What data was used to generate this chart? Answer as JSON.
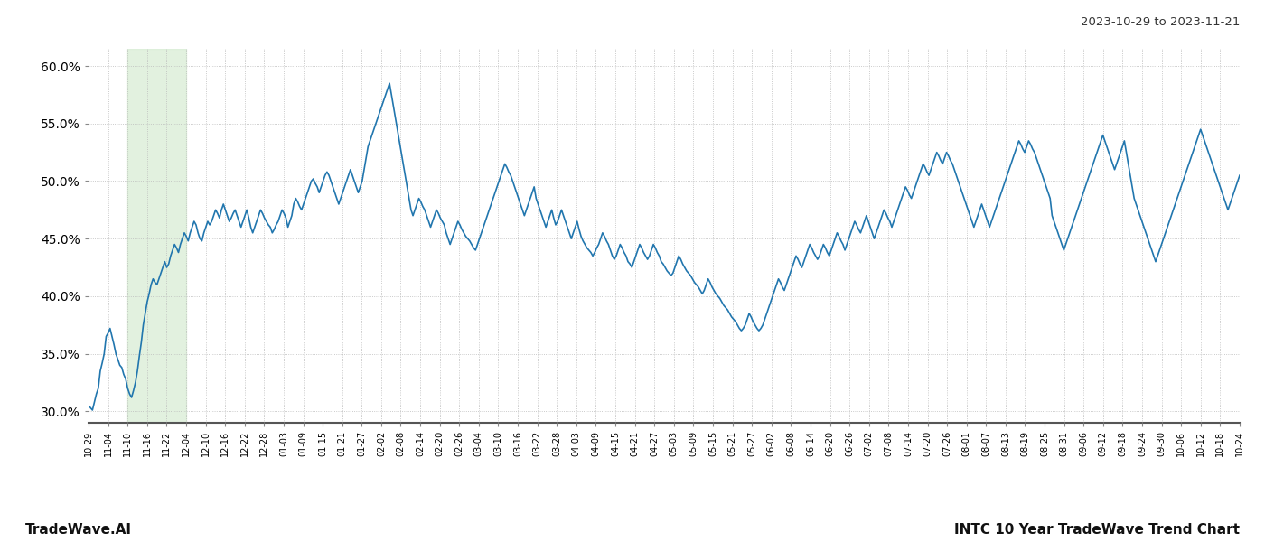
{
  "title_top_right": "2023-10-29 to 2023-11-21",
  "title_bottom_left": "TradeWave.AI",
  "title_bottom_right": "INTC 10 Year TradeWave Trend Chart",
  "line_color": "#2176ae",
  "line_width": 1.2,
  "shaded_region_color": "#d6ecd2",
  "shaded_region_alpha": 0.7,
  "ylim_low": 29.0,
  "ylim_high": 61.5,
  "yticks": [
    30.0,
    35.0,
    40.0,
    45.0,
    50.0,
    55.0,
    60.0
  ],
  "background_color": "#ffffff",
  "grid_color": "#bbbbbb",
  "grid_linestyle": ":",
  "x_labels": [
    "10-29",
    "11-04",
    "11-10",
    "11-16",
    "11-22",
    "12-04",
    "12-10",
    "12-16",
    "12-22",
    "12-28",
    "01-03",
    "01-09",
    "01-15",
    "01-21",
    "01-27",
    "02-02",
    "02-08",
    "02-14",
    "02-20",
    "02-26",
    "03-04",
    "03-10",
    "03-16",
    "03-22",
    "03-28",
    "04-03",
    "04-09",
    "04-15",
    "04-21",
    "04-27",
    "05-03",
    "05-09",
    "05-15",
    "05-21",
    "05-27",
    "06-02",
    "06-08",
    "06-14",
    "06-20",
    "06-26",
    "07-02",
    "07-08",
    "07-14",
    "07-20",
    "07-26",
    "08-01",
    "08-07",
    "08-13",
    "08-19",
    "08-25",
    "08-31",
    "09-06",
    "09-12",
    "09-18",
    "09-24",
    "09-30",
    "10-06",
    "10-12",
    "10-18",
    "10-24"
  ],
  "shaded_x_label_start": "11-10",
  "shaded_x_label_end": "11-28",
  "values": [
    30.5,
    30.3,
    30.1,
    30.8,
    31.5,
    32.0,
    33.5,
    34.2,
    35.0,
    36.5,
    36.8,
    37.2,
    36.5,
    35.8,
    35.0,
    34.5,
    34.0,
    33.8,
    33.2,
    32.8,
    32.0,
    31.5,
    31.2,
    31.8,
    32.5,
    33.5,
    34.8,
    36.0,
    37.5,
    38.5,
    39.5,
    40.2,
    41.0,
    41.5,
    41.2,
    41.0,
    41.5,
    42.0,
    42.5,
    43.0,
    42.5,
    42.8,
    43.5,
    44.0,
    44.5,
    44.2,
    43.8,
    44.5,
    45.0,
    45.5,
    45.2,
    44.8,
    45.5,
    46.0,
    46.5,
    46.2,
    45.5,
    45.0,
    44.8,
    45.5,
    46.0,
    46.5,
    46.2,
    46.5,
    47.0,
    47.5,
    47.2,
    46.8,
    47.5,
    48.0,
    47.5,
    47.0,
    46.5,
    46.8,
    47.2,
    47.5,
    47.0,
    46.5,
    46.0,
    46.5,
    47.0,
    47.5,
    46.8,
    46.0,
    45.5,
    46.0,
    46.5,
    47.0,
    47.5,
    47.2,
    46.8,
    46.5,
    46.2,
    46.0,
    45.5,
    45.8,
    46.2,
    46.5,
    47.0,
    47.5,
    47.2,
    46.8,
    46.0,
    46.5,
    47.0,
    48.0,
    48.5,
    48.2,
    47.8,
    47.5,
    48.0,
    48.5,
    49.0,
    49.5,
    50.0,
    50.2,
    49.8,
    49.5,
    49.0,
    49.5,
    50.0,
    50.5,
    50.8,
    50.5,
    50.0,
    49.5,
    49.0,
    48.5,
    48.0,
    48.5,
    49.0,
    49.5,
    50.0,
    50.5,
    51.0,
    50.5,
    50.0,
    49.5,
    49.0,
    49.5,
    50.0,
    51.0,
    52.0,
    53.0,
    53.5,
    54.0,
    54.5,
    55.0,
    55.5,
    56.0,
    56.5,
    57.0,
    57.5,
    58.0,
    58.5,
    57.5,
    56.5,
    55.5,
    54.5,
    53.5,
    52.5,
    51.5,
    50.5,
    49.5,
    48.5,
    47.5,
    47.0,
    47.5,
    48.0,
    48.5,
    48.2,
    47.8,
    47.5,
    47.0,
    46.5,
    46.0,
    46.5,
    47.0,
    47.5,
    47.2,
    46.8,
    46.5,
    46.2,
    45.5,
    45.0,
    44.5,
    45.0,
    45.5,
    46.0,
    46.5,
    46.2,
    45.8,
    45.5,
    45.2,
    45.0,
    44.8,
    44.5,
    44.2,
    44.0,
    44.5,
    45.0,
    45.5,
    46.0,
    46.5,
    47.0,
    47.5,
    48.0,
    48.5,
    49.0,
    49.5,
    50.0,
    50.5,
    51.0,
    51.5,
    51.2,
    50.8,
    50.5,
    50.0,
    49.5,
    49.0,
    48.5,
    48.0,
    47.5,
    47.0,
    47.5,
    48.0,
    48.5,
    49.0,
    49.5,
    48.5,
    48.0,
    47.5,
    47.0,
    46.5,
    46.0,
    46.5,
    47.0,
    47.5,
    46.8,
    46.2,
    46.5,
    47.0,
    47.5,
    47.0,
    46.5,
    46.0,
    45.5,
    45.0,
    45.5,
    46.0,
    46.5,
    45.8,
    45.2,
    44.8,
    44.5,
    44.2,
    44.0,
    43.8,
    43.5,
    43.8,
    44.2,
    44.5,
    45.0,
    45.5,
    45.2,
    44.8,
    44.5,
    44.0,
    43.5,
    43.2,
    43.5,
    44.0,
    44.5,
    44.2,
    43.8,
    43.5,
    43.0,
    42.8,
    42.5,
    43.0,
    43.5,
    44.0,
    44.5,
    44.2,
    43.8,
    43.5,
    43.2,
    43.5,
    44.0,
    44.5,
    44.2,
    43.8,
    43.5,
    43.0,
    42.8,
    42.5,
    42.2,
    42.0,
    41.8,
    42.0,
    42.5,
    43.0,
    43.5,
    43.2,
    42.8,
    42.5,
    42.2,
    42.0,
    41.8,
    41.5,
    41.2,
    41.0,
    40.8,
    40.5,
    40.2,
    40.5,
    41.0,
    41.5,
    41.2,
    40.8,
    40.5,
    40.2,
    40.0,
    39.8,
    39.5,
    39.2,
    39.0,
    38.8,
    38.5,
    38.2,
    38.0,
    37.8,
    37.5,
    37.2,
    37.0,
    37.2,
    37.5,
    38.0,
    38.5,
    38.2,
    37.8,
    37.5,
    37.2,
    37.0,
    37.2,
    37.5,
    38.0,
    38.5,
    39.0,
    39.5,
    40.0,
    40.5,
    41.0,
    41.5,
    41.2,
    40.8,
    40.5,
    41.0,
    41.5,
    42.0,
    42.5,
    43.0,
    43.5,
    43.2,
    42.8,
    42.5,
    43.0,
    43.5,
    44.0,
    44.5,
    44.2,
    43.8,
    43.5,
    43.2,
    43.5,
    44.0,
    44.5,
    44.2,
    43.8,
    43.5,
    44.0,
    44.5,
    45.0,
    45.5,
    45.2,
    44.8,
    44.5,
    44.0,
    44.5,
    45.0,
    45.5,
    46.0,
    46.5,
    46.2,
    45.8,
    45.5,
    46.0,
    46.5,
    47.0,
    46.5,
    46.0,
    45.5,
    45.0,
    45.5,
    46.0,
    46.5,
    47.0,
    47.5,
    47.2,
    46.8,
    46.5,
    46.0,
    46.5,
    47.0,
    47.5,
    48.0,
    48.5,
    49.0,
    49.5,
    49.2,
    48.8,
    48.5,
    49.0,
    49.5,
    50.0,
    50.5,
    51.0,
    51.5,
    51.2,
    50.8,
    50.5,
    51.0,
    51.5,
    52.0,
    52.5,
    52.2,
    51.8,
    51.5,
    52.0,
    52.5,
    52.2,
    51.8,
    51.5,
    51.0,
    50.5,
    50.0,
    49.5,
    49.0,
    48.5,
    48.0,
    47.5,
    47.0,
    46.5,
    46.0,
    46.5,
    47.0,
    47.5,
    48.0,
    47.5,
    47.0,
    46.5,
    46.0,
    46.5,
    47.0,
    47.5,
    48.0,
    48.5,
    49.0,
    49.5,
    50.0,
    50.5,
    51.0,
    51.5,
    52.0,
    52.5,
    53.0,
    53.5,
    53.2,
    52.8,
    52.5,
    53.0,
    53.5,
    53.2,
    52.8,
    52.5,
    52.0,
    51.5,
    51.0,
    50.5,
    50.0,
    49.5,
    49.0,
    48.5,
    47.0,
    46.5,
    46.0,
    45.5,
    45.0,
    44.5,
    44.0,
    44.5,
    45.0,
    45.5,
    46.0,
    46.5,
    47.0,
    47.5,
    48.0,
    48.5,
    49.0,
    49.5,
    50.0,
    50.5,
    51.0,
    51.5,
    52.0,
    52.5,
    53.0,
    53.5,
    54.0,
    53.5,
    53.0,
    52.5,
    52.0,
    51.5,
    51.0,
    51.5,
    52.0,
    52.5,
    53.0,
    53.5,
    52.5,
    51.5,
    50.5,
    49.5,
    48.5,
    48.0,
    47.5,
    47.0,
    46.5,
    46.0,
    45.5,
    45.0,
    44.5,
    44.0,
    43.5,
    43.0,
    43.5,
    44.0,
    44.5,
    45.0,
    45.5,
    46.0,
    46.5,
    47.0,
    47.5,
    48.0,
    48.5,
    49.0,
    49.5,
    50.0,
    50.5,
    51.0,
    51.5,
    52.0,
    52.5,
    53.0,
    53.5,
    54.0,
    54.5,
    54.0,
    53.5,
    53.0,
    52.5,
    52.0,
    51.5,
    51.0,
    50.5,
    50.0,
    49.5,
    49.0,
    48.5,
    48.0,
    47.5,
    48.0,
    48.5,
    49.0,
    49.5,
    50.0,
    50.5
  ]
}
